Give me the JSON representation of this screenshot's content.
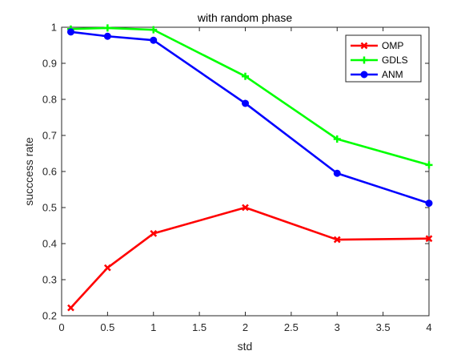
{
  "chart_data": {
    "type": "line",
    "title": "with random phase",
    "xlabel": "std",
    "ylabel": "succcess rate",
    "xlim": [
      0,
      4
    ],
    "ylim": [
      0.2,
      1
    ],
    "xticks": [
      0,
      0.5,
      1,
      1.5,
      2,
      2.5,
      3,
      3.5,
      4
    ],
    "xtick_labels": [
      "0",
      "0.5",
      "1",
      "1.5",
      "2",
      "2.5",
      "3",
      "3.5",
      "4"
    ],
    "yticks": [
      0.2,
      0.3,
      0.4,
      0.5,
      0.6,
      0.7,
      0.8,
      0.9,
      1
    ],
    "ytick_labels": [
      "0.2",
      "0.3",
      "0.4",
      "0.5",
      "0.6",
      "0.7",
      "0.8",
      "0.9",
      "1"
    ],
    "grid": false,
    "legend_position": "top-right",
    "x": [
      0.1,
      0.5,
      1,
      2,
      3,
      4
    ],
    "series": [
      {
        "name": "OMP",
        "color": "#ff0000",
        "marker": "x",
        "values": [
          0.222,
          0.333,
          0.428,
          0.5,
          0.411,
          0.414
        ]
      },
      {
        "name": "GDLS",
        "color": "#00ff00",
        "marker": "plus",
        "values": [
          0.995,
          0.998,
          0.993,
          0.864,
          0.69,
          0.618
        ]
      },
      {
        "name": "ANM",
        "color": "#0000ff",
        "marker": "circle",
        "values": [
          0.987,
          0.975,
          0.964,
          0.789,
          0.595,
          0.512
        ]
      }
    ]
  }
}
